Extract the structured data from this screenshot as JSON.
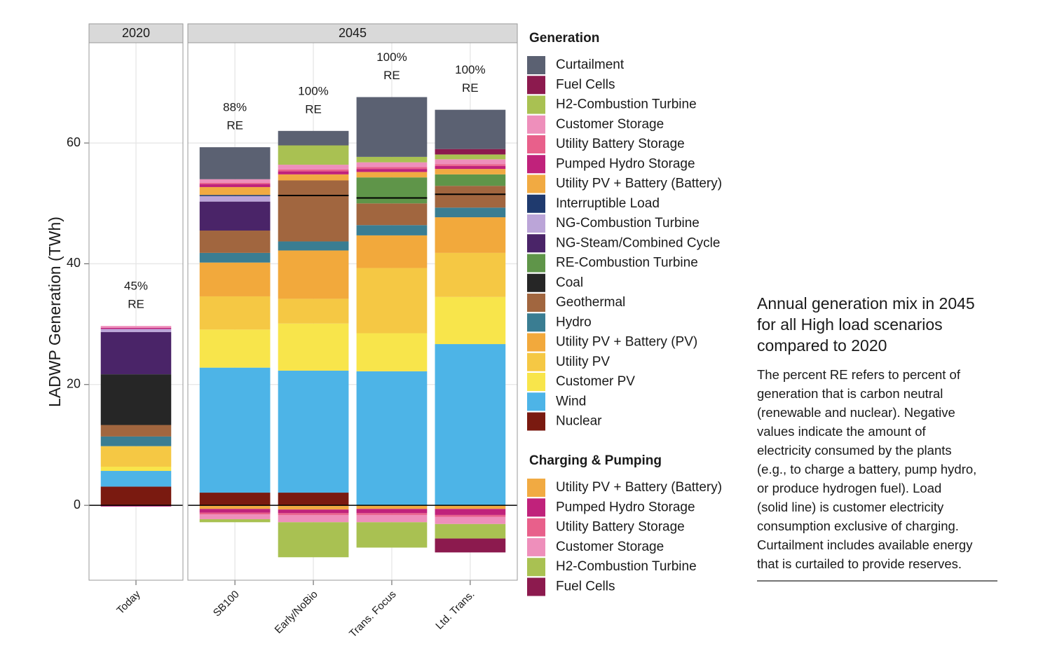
{
  "chart_data": {
    "type": "stacked-bar",
    "y_label": "LADWP Generation (TWh)",
    "panels": [
      {
        "label": "2020",
        "categories": [
          "Today"
        ]
      },
      {
        "label": "2045",
        "categories": [
          "SB100",
          "Early/NoBio",
          "Trans. Focus",
          "Ltd. Trans."
        ]
      }
    ],
    "ylim": [
      -12.4,
      76.6
    ],
    "yticks": [
      0,
      20,
      40,
      60
    ],
    "grid": true,
    "re_labels": [
      [
        "45%",
        "RE"
      ],
      [
        "88%",
        "RE"
      ],
      [
        "100%",
        "RE"
      ],
      [
        "100%",
        "RE"
      ],
      [
        "100%",
        "RE"
      ]
    ],
    "load": [
      null,
      null,
      51.3,
      50.9,
      51.5
    ],
    "generation_title": "Generation",
    "series": [
      {
        "name": "Curtailment",
        "color": "#5b6172",
        "values": [
          0,
          5.3,
          2.4,
          9.9,
          6.5
        ]
      },
      {
        "name": "Fuel Cells",
        "color": "#8c1a4e",
        "values": [
          0,
          0,
          0,
          0,
          0.9
        ]
      },
      {
        "name": "H2-Combustion Turbine",
        "color": "#a9c152",
        "values": [
          0,
          0,
          3.2,
          0.9,
          0.8
        ]
      },
      {
        "name": "Customer Storage",
        "color": "#ee8fbb",
        "values": [
          0.3,
          0.6,
          0.8,
          0.8,
          0.8
        ]
      },
      {
        "name": "Utility Battery Storage",
        "color": "#e8608b",
        "values": [
          0,
          0.2,
          0.3,
          0.3,
          0.3
        ]
      },
      {
        "name": "Pumped Hydro Storage",
        "color": "#c0227b",
        "values": [
          0.2,
          0.5,
          0.5,
          0.5,
          0.5
        ]
      },
      {
        "name": "Utility PV + Battery (Battery)",
        "color": "#f1aa42",
        "values": [
          0,
          1.3,
          1.0,
          0.9,
          0.9
        ]
      },
      {
        "name": "Interruptible Load",
        "color": "#1f3a6e",
        "values": [
          0,
          0.2,
          0,
          0,
          0
        ]
      },
      {
        "name": "NG-Combustion Turbine",
        "color": "#bba5d8",
        "values": [
          0.5,
          0.9,
          0,
          0,
          0
        ]
      },
      {
        "name": "NG-Steam/Combined Cycle",
        "color": "#4a2468",
        "values": [
          7.0,
          4.8,
          0,
          0,
          0
        ]
      },
      {
        "name": "RE-Combustion Turbine",
        "color": "#5f9549",
        "values": [
          0,
          0,
          0,
          4.3,
          1.9
        ]
      },
      {
        "name": "Coal",
        "color": "#262626",
        "values": [
          8.4,
          0,
          0,
          0,
          0
        ]
      },
      {
        "name": "Geothermal",
        "color": "#a1663f",
        "values": [
          1.9,
          3.7,
          10.1,
          3.6,
          3.6
        ]
      },
      {
        "name": "Hydro",
        "color": "#3a7d92",
        "values": [
          1.6,
          1.6,
          1.5,
          1.7,
          1.6
        ]
      },
      {
        "name": "Utility PV + Battery (PV)",
        "color": "#f2a93c",
        "values": [
          0,
          5.6,
          8.0,
          5.4,
          5.9
        ]
      },
      {
        "name": "Utility PV",
        "color": "#f5c844",
        "values": [
          3.4,
          5.5,
          4.1,
          10.8,
          7.3
        ]
      },
      {
        "name": "Customer PV",
        "color": "#f8e54b",
        "values": [
          0.7,
          6.3,
          7.8,
          6.3,
          7.8
        ]
      },
      {
        "name": "Wind",
        "color": "#4db4e7",
        "values": [
          2.6,
          20.7,
          20.2,
          22.2,
          26.7
        ]
      },
      {
        "name": "Nuclear",
        "color": "#7a1a10",
        "values": [
          3.1,
          2.1,
          2.1,
          0,
          0
        ]
      }
    ],
    "charging_title": "Charging & Pumping",
    "charging_series": [
      {
        "name": "Utility PV + Battery (Battery)",
        "color": "#f1aa42",
        "values": [
          0,
          -0.6,
          -0.7,
          -0.6,
          -0.6
        ]
      },
      {
        "name": "Pumped Hydro Storage",
        "color": "#c0227b",
        "values": [
          -0.2,
          -0.6,
          -0.6,
          -0.7,
          -1.0
        ]
      },
      {
        "name": "Utility Battery Storage",
        "color": "#e8608b",
        "values": [
          0,
          -0.3,
          -0.3,
          -0.3,
          -0.3
        ]
      },
      {
        "name": "Customer Storage",
        "color": "#ee8fbb",
        "values": [
          0,
          -0.8,
          -1.2,
          -1.2,
          -1.2
        ]
      },
      {
        "name": "H2-Combustion Turbine",
        "color": "#a9c152",
        "values": [
          0,
          -0.5,
          -5.8,
          -4.2,
          -2.4
        ]
      },
      {
        "name": "Fuel Cells",
        "color": "#8c1a4e",
        "values": [
          0,
          0,
          0,
          0,
          -2.3
        ]
      }
    ]
  },
  "caption": {
    "title": [
      "Annual generation mix in 2045",
      "for all High load scenarios",
      "compared to 2020"
    ],
    "text": [
      "The percent RE refers to percent of",
      "generation that is carbon neutral",
      "(renewable and nuclear). Negative",
      "values indicate the amount of",
      "electricity consumed by the plants",
      "(e.g., to charge a battery, pump hydro,",
      "or produce hydrogen fuel). Load",
      "(solid line) is customer electricity",
      "consumption exclusive of charging.",
      "Curtailment includes available energy",
      "that is curtailed to provide reserves."
    ]
  }
}
